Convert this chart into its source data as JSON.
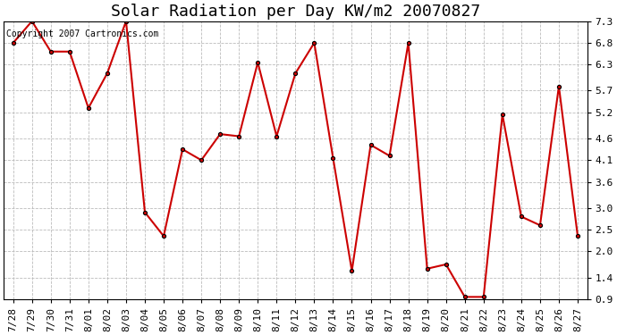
{
  "title": "Solar Radiation per Day KW/m2 20070827",
  "copyright": "Copyright 2007 Cartronics.com",
  "labels": [
    "7/28",
    "7/29",
    "7/30",
    "7/31",
    "8/01",
    "8/02",
    "8/03",
    "8/04",
    "8/05",
    "8/06",
    "8/07",
    "8/08",
    "8/09",
    "8/10",
    "8/11",
    "8/12",
    "8/13",
    "8/14",
    "8/15",
    "8/16",
    "8/17",
    "8/18",
    "8/19",
    "8/20",
    "8/21",
    "8/22",
    "8/23",
    "8/24",
    "8/25",
    "8/26",
    "8/27"
  ],
  "values": [
    6.8,
    7.3,
    6.6,
    6.6,
    5.3,
    6.1,
    7.3,
    2.9,
    2.35,
    4.35,
    4.1,
    4.7,
    4.65,
    6.35,
    4.65,
    6.1,
    6.8,
    4.15,
    1.55,
    4.45,
    4.2,
    6.8,
    1.6,
    1.7,
    0.95,
    0.95,
    5.15,
    2.8,
    2.6,
    5.8,
    2.35
  ],
  "line_color": "#cc0000",
  "marker": "o",
  "marker_size": 3,
  "marker_face": "#cc0000",
  "marker_edge": "#000000",
  "marker_edge_width": 0.8,
  "ylim_min": 0.9,
  "ylim_max": 7.3,
  "yticks": [
    0.9,
    1.4,
    2.0,
    2.5,
    3.0,
    3.6,
    4.1,
    4.6,
    5.2,
    5.7,
    6.3,
    6.8,
    7.3
  ],
  "bg_color": "#ffffff",
  "plot_bg_color": "#ffffff",
  "grid_color": "#bbbbbb",
  "title_fontsize": 13,
  "copyright_fontsize": 7,
  "tick_fontsize": 8,
  "line_width": 1.5
}
